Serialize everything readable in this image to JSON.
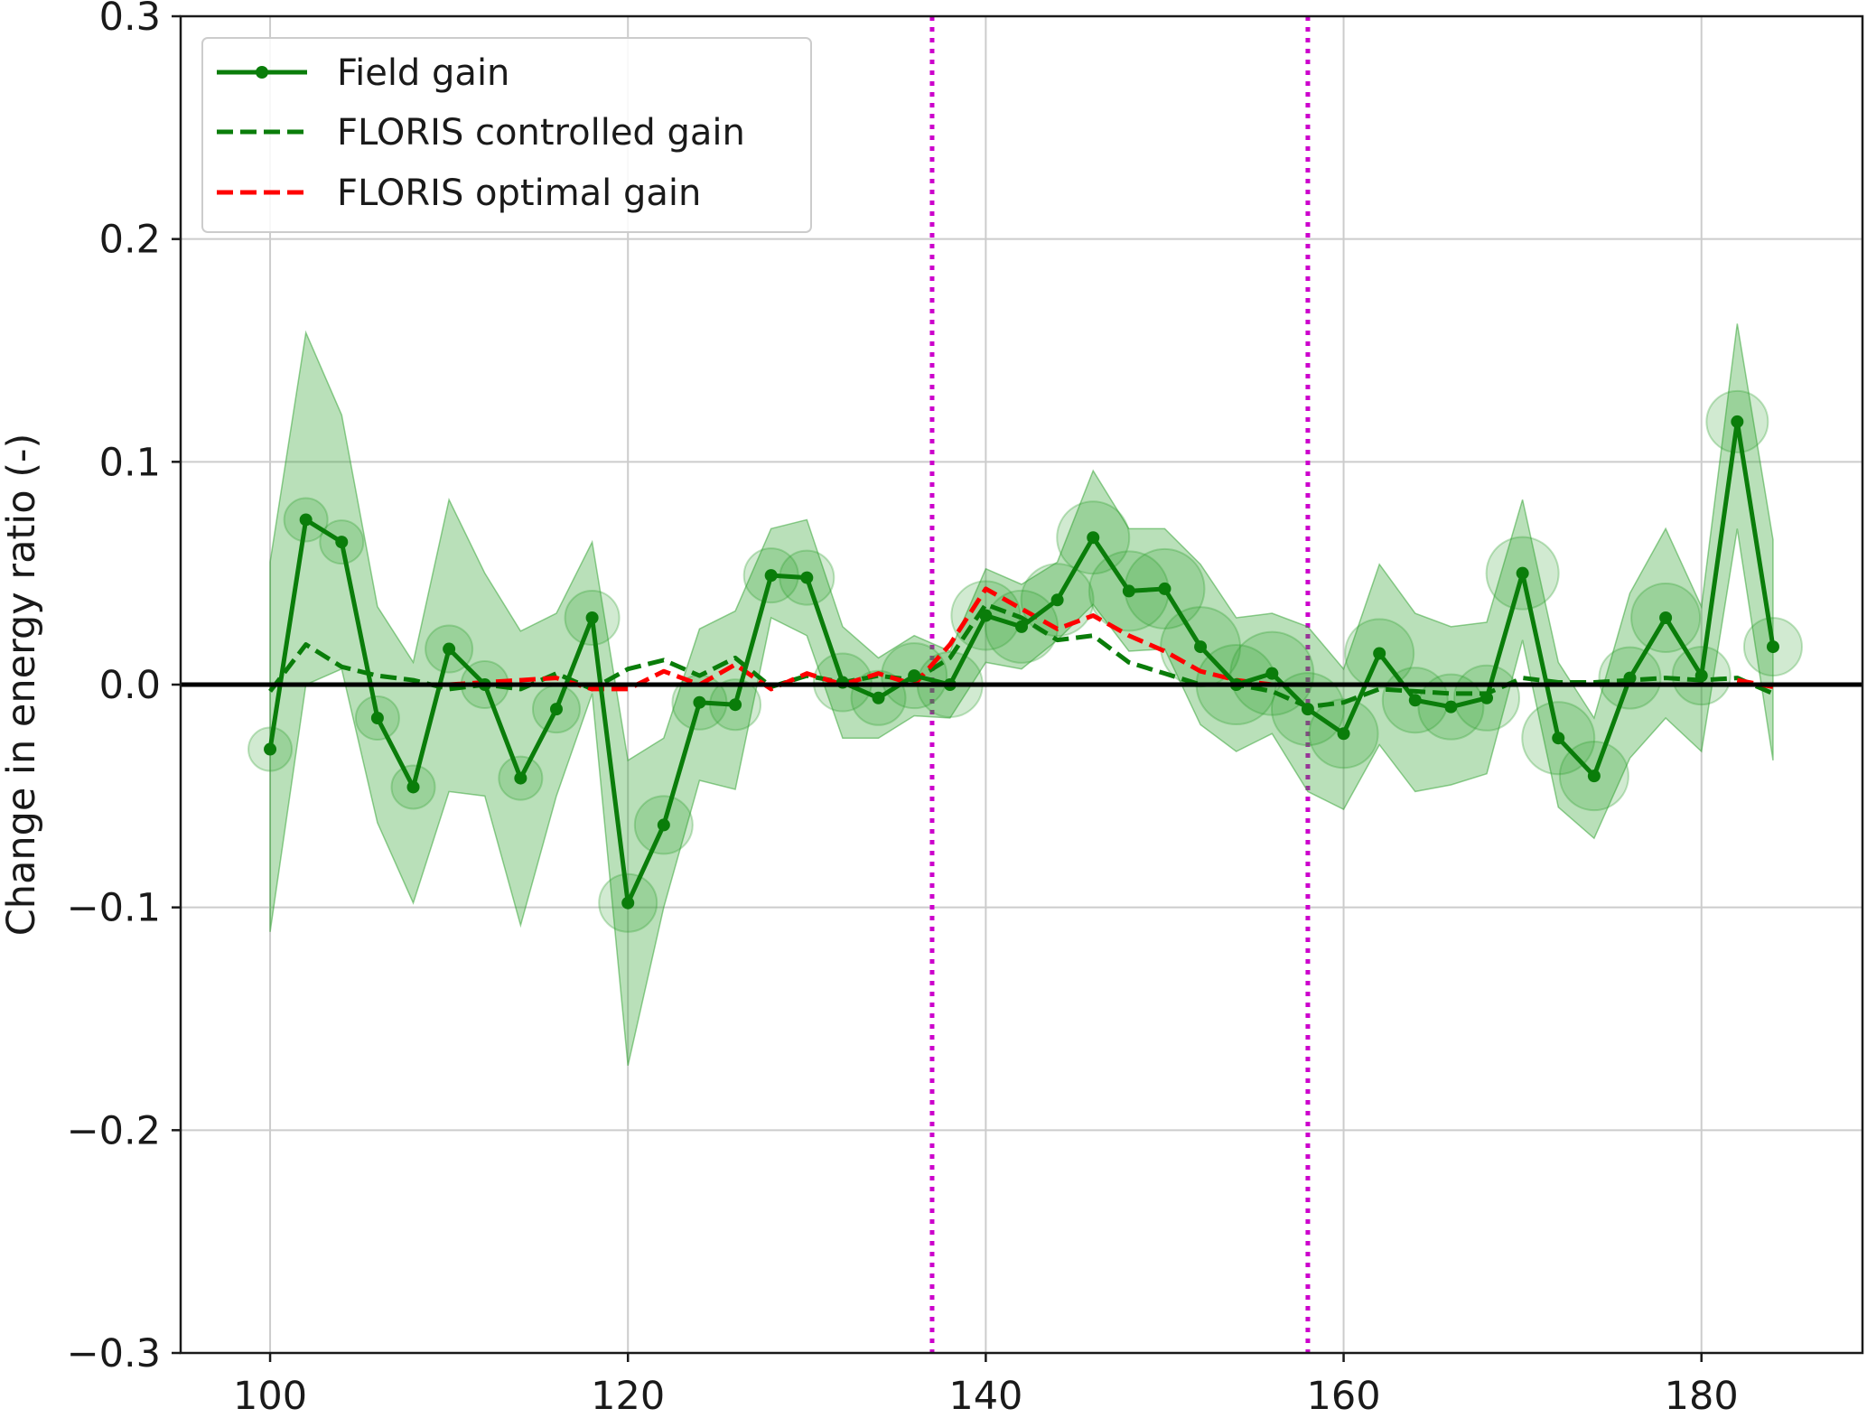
{
  "chart_data": {
    "type": "line",
    "title": "",
    "xlabel": "",
    "ylabel": "Change in energy ratio (-)",
    "xlim": [
      95,
      189
    ],
    "ylim": [
      -0.3,
      0.3
    ],
    "xticks": [
      100,
      120,
      140,
      160,
      180
    ],
    "yticks": [
      -0.3,
      -0.2,
      -0.1,
      0.0,
      0.1,
      0.2,
      0.3
    ],
    "ytick_labels": [
      "−0.3",
      "−0.2",
      "−0.1",
      "0.0",
      "0.1",
      "0.2",
      "0.3"
    ],
    "grid": true,
    "legend_position": "top-left",
    "reference_lines": {
      "horizontal_zero": {
        "y": 0,
        "color": "#000000"
      },
      "vertical": [
        {
          "x": 137,
          "color": "#cc00cc"
        },
        {
          "x": 158,
          "color": "#cc00cc"
        }
      ]
    },
    "x": [
      100,
      102,
      104,
      106,
      108,
      110,
      112,
      114,
      116,
      118,
      120,
      122,
      124,
      126,
      128,
      130,
      132,
      134,
      136,
      138,
      140,
      142,
      144,
      146,
      148,
      150,
      152,
      154,
      156,
      158,
      160,
      162,
      164,
      166,
      168,
      170,
      172,
      174,
      176,
      178,
      180,
      182,
      184
    ],
    "series": [
      {
        "name": "Field gain",
        "style": "solid-marker",
        "color": "#0a7d0a",
        "values": [
          -0.029,
          0.074,
          0.064,
          -0.015,
          -0.046,
          0.016,
          0.0,
          -0.042,
          -0.011,
          0.03,
          -0.098,
          -0.063,
          -0.008,
          -0.009,
          0.049,
          0.048,
          0.001,
          -0.006,
          0.004,
          0.0,
          0.031,
          0.026,
          0.038,
          0.066,
          0.042,
          0.043,
          0.017,
          0.0,
          0.005,
          -0.011,
          -0.022,
          0.014,
          -0.007,
          -0.01,
          -0.006,
          0.05,
          -0.024,
          -0.041,
          0.003,
          0.03,
          0.004,
          0.118,
          0.017
        ],
        "ci_upper": [
          0.055,
          0.158,
          0.121,
          0.035,
          0.01,
          0.083,
          0.05,
          0.024,
          0.032,
          0.064,
          -0.034,
          -0.024,
          0.025,
          0.033,
          0.07,
          0.074,
          0.026,
          0.012,
          0.022,
          0.015,
          0.052,
          0.045,
          0.055,
          0.096,
          0.07,
          0.07,
          0.054,
          0.03,
          0.032,
          0.026,
          0.007,
          0.054,
          0.032,
          0.026,
          0.028,
          0.083,
          0.01,
          -0.015,
          0.041,
          0.07,
          0.035,
          0.162,
          0.065
        ],
        "ci_lower": [
          -0.111,
          0.0,
          0.007,
          -0.062,
          -0.098,
          -0.048,
          -0.05,
          -0.108,
          -0.05,
          -0.004,
          -0.171,
          -0.1,
          -0.043,
          -0.047,
          0.03,
          0.022,
          -0.024,
          -0.024,
          -0.014,
          -0.015,
          0.01,
          0.007,
          0.02,
          0.036,
          0.015,
          0.016,
          -0.018,
          -0.03,
          -0.022,
          -0.048,
          -0.056,
          -0.027,
          -0.048,
          -0.045,
          -0.04,
          0.02,
          -0.055,
          -0.069,
          -0.033,
          -0.015,
          -0.03,
          0.07,
          -0.034
        ],
        "bubble_weight": [
          0.5,
          0.5,
          0.5,
          0.5,
          0.5,
          0.6,
          0.6,
          0.5,
          0.6,
          0.8,
          0.9,
          0.9,
          0.8,
          0.7,
          0.8,
          0.8,
          0.9,
          0.8,
          1.1,
          1.1,
          1.2,
          1.3,
          1.3,
          1.3,
          1.5,
          1.5,
          1.5,
          1.5,
          1.6,
          1.3,
          1.2,
          1.2,
          1.1,
          1.1,
          1.1,
          1.3,
          1.3,
          1.2,
          1.0,
          1.2,
          0.9,
          1.0,
          0.9
        ]
      },
      {
        "name": "FLORIS controlled gain",
        "style": "dashed",
        "color": "#0a7d0a",
        "values": [
          -0.003,
          0.018,
          0.008,
          0.004,
          0.002,
          -0.002,
          0.0,
          -0.002,
          0.005,
          -0.002,
          0.007,
          0.011,
          0.004,
          0.012,
          -0.001,
          0.004,
          0.001,
          0.004,
          0.002,
          0.012,
          0.036,
          0.03,
          0.02,
          0.022,
          0.01,
          0.005,
          0.0,
          0.0,
          -0.003,
          -0.01,
          -0.008,
          -0.002,
          -0.003,
          -0.004,
          -0.004,
          0.003,
          0.001,
          0.001,
          0.002,
          0.003,
          0.002,
          0.003,
          -0.004
        ]
      },
      {
        "name": "FLORIS optimal gain",
        "style": "dashed",
        "color": "#ff0000",
        "values": [
          null,
          null,
          null,
          null,
          null,
          0.0,
          0.001,
          0.002,
          0.003,
          -0.002,
          -0.002,
          0.006,
          0.0,
          0.009,
          -0.002,
          0.005,
          0.0,
          0.005,
          0.0,
          0.018,
          0.043,
          0.034,
          0.025,
          0.031,
          0.022,
          0.015,
          0.006,
          0.002,
          0.0,
          null,
          null,
          null,
          null,
          null,
          null,
          null,
          null,
          null,
          null,
          null,
          null,
          0.002,
          -0.001
        ]
      }
    ]
  }
}
